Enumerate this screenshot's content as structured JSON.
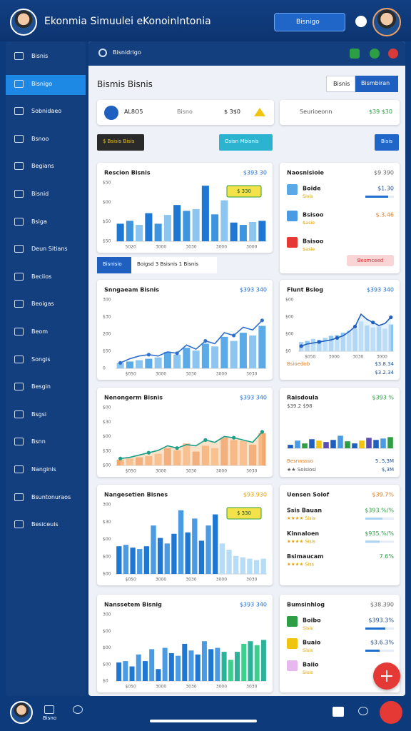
{
  "header": {
    "title": "Ekonmia  Simuulei eKonoinIntonia",
    "button": "Bisnigo"
  },
  "sidebar": {
    "items": [
      "Bisnis",
      "Bisnigo",
      "Sobnidaeo",
      "Bsnoo",
      "Begians",
      "Bisnid",
      "Bsiga",
      "Deun Sitians",
      "Beciios",
      "Beoigas",
      "Beom",
      "Songis",
      "Besgin",
      "Bsgsi",
      "Bsnn",
      "Nanginis",
      "Bsuntonuraos",
      "Besiceuis"
    ],
    "active": 1
  },
  "toolbar": {
    "title": "Bisnidrigo"
  },
  "page": {
    "title": "Bismis Bisnis",
    "tabs": [
      "Bisnis",
      "Bismbiran"
    ]
  },
  "stats": {
    "items": [
      "AL8O5",
      "Bisno",
      "$ 3$0"
    ],
    "side_label": "Seurioeonn",
    "side_value": "$39 $30"
  },
  "actions": [
    "$ Bsisis Bisis",
    "Osisn Mbisnis",
    "Bisis"
  ],
  "filter": {
    "tab": "Bisnisio",
    "select": "Boigsd  3 Bsisnis 1 Bisnis"
  },
  "charts": [
    {
      "type": "bar",
      "title": "Rescion Bisnis",
      "value": "$393 30",
      "value_color": "#1f6fd0",
      "ylim": [
        0,
        100
      ],
      "ylabels": [
        "$50",
        "$00",
        "$50",
        "$50"
      ],
      "xlabels": [
        "5020",
        "3000",
        "3030",
        "3000",
        "3000"
      ],
      "values": [
        30,
        35,
        28,
        48,
        30,
        45,
        62,
        52,
        55,
        95,
        46,
        70,
        32,
        28,
        33,
        35
      ],
      "colors": [
        "#1f77d4",
        "#3d95e0",
        "#8cc6f0"
      ],
      "badge": "$ 330"
    },
    {
      "type": "combo",
      "title": "Snngaeam Bisnis",
      "value": "$393 340",
      "value_color": "#1f6fd0",
      "ylim": [
        0,
        100
      ],
      "ylabels": [
        "300",
        "$30",
        "200",
        "$50",
        "0"
      ],
      "xlabels": [
        "$050",
        "3000",
        "3030",
        "3000",
        "3030"
      ],
      "values": [
        8,
        10,
        12,
        14,
        16,
        24,
        20,
        30,
        26,
        36,
        32,
        46,
        40,
        52,
        48,
        62
      ],
      "colors": [
        "#8cc6f0",
        "#5aaae8"
      ],
      "line": [
        8,
        14,
        18,
        20,
        18,
        24,
        22,
        34,
        28,
        40,
        36,
        52,
        48,
        60,
        56,
        70
      ],
      "line_color": "#2f6fcf"
    },
    {
      "type": "area",
      "title": "Nenongerm Bisnis",
      "value": "$393 340",
      "value_color": "#1f6fd0",
      "ylim": [
        0,
        100
      ],
      "ylabels": [
        "$00",
        "$30",
        "$00",
        "$30",
        "$00"
      ],
      "xlabels": [
        "$050",
        "3000",
        "3030",
        "3000",
        "3030"
      ],
      "values": [
        10,
        12,
        14,
        16,
        20,
        30,
        26,
        38,
        24,
        34,
        30,
        48,
        44,
        42,
        36,
        56
      ],
      "colors": [
        "#f5a66a",
        "#f7b985",
        "#e8925a"
      ],
      "line": [
        12,
        14,
        18,
        22,
        26,
        34,
        30,
        36,
        34,
        44,
        40,
        50,
        48,
        44,
        40,
        58
      ],
      "line_color": "#1b9e8a",
      "area_color": "#f8c89a"
    },
    {
      "type": "bar",
      "title": "Nangesetien Bisnes",
      "value": "$93.930",
      "value_color": "#e6a100",
      "ylim": [
        0,
        100
      ],
      "ylabels": [
        "300",
        "$30",
        "$00",
        "$00",
        "$00"
      ],
      "xlabels": [
        "$050",
        "3000",
        "3030",
        "3000",
        "3030"
      ],
      "values": [
        40,
        42,
        38,
        36,
        40,
        70,
        52,
        44,
        58,
        92,
        60,
        80,
        48,
        70,
        86,
        44,
        35,
        26,
        24,
        22,
        20,
        22
      ],
      "colors": [
        "#1f77d4",
        "#4a9be3",
        "#1f77d4",
        "#4a9be3",
        "#1f77d4",
        "#4a9be3",
        "#1f77d4",
        "#4a9be3",
        "#1f77d4",
        "#4a9be3",
        "#1f77d4",
        "#4a9be3",
        "#1f77d4",
        "#4a9be3",
        "#1f77d4",
        "#b7dcf5",
        "#b7dcf5",
        "#b7dcf5",
        "#b7dcf5",
        "#b7dcf5",
        "#b7dcf5",
        "#b7dcf5"
      ],
      "badge": "$ 330"
    },
    {
      "type": "bar",
      "title": "Nanssetem Bisnig",
      "value": "$393 340",
      "value_color": "#1f6fd0",
      "ylim": [
        0,
        100
      ],
      "ylabels": [
        "300",
        "$00",
        "$00",
        "$00",
        "$0"
      ],
      "xlabels": [
        "$050",
        "3000",
        "3030",
        "3000",
        "3030"
      ],
      "values": [
        28,
        30,
        22,
        40,
        30,
        48,
        18,
        50,
        42,
        38,
        56,
        46,
        40,
        60,
        48,
        50,
        44,
        32,
        44,
        56,
        60,
        54,
        62
      ],
      "colors": [
        "#1f77d4",
        "#4a9be3",
        "#1f77d4",
        "#4a9be3",
        "#1f77d4",
        "#4a9be3",
        "#1f77d4",
        "#4a9be3",
        "#1f77d4",
        "#4a9be3",
        "#1f77d4",
        "#4a9be3",
        "#1f77d4",
        "#4a9be3",
        "#1f77d4",
        "#4a9be3",
        "#2bb39a",
        "#3ccf8e",
        "#2bb39a",
        "#3ccf8e",
        "#2bb39a",
        "#3ccf8e",
        "#2bb39a"
      ]
    },
    {
      "type": "area",
      "title": "Flunt Bslog",
      "value": "$393 340",
      "value_color": "#1f6fd0",
      "ylim": [
        0,
        100
      ],
      "ylabels": [
        "$00",
        "$00",
        "$00",
        "$0"
      ],
      "xlabels": [
        "$050",
        "3000",
        "3030",
        "3000"
      ],
      "values": [
        18,
        20,
        24,
        22,
        26,
        30,
        32,
        36,
        40,
        44,
        58,
        50,
        46,
        48,
        44,
        52
      ],
      "colors": [
        "#a9d4f3",
        "#8cc6f0"
      ],
      "line": [
        10,
        14,
        16,
        18,
        20,
        22,
        26,
        30,
        38,
        48,
        72,
        62,
        56,
        50,
        54,
        66
      ],
      "line_color": "#1f5fbf",
      "area_color": "#cfe6fa",
      "footer": [
        {
          "left": "Bsioedob",
          "right": "$3.8.34"
        },
        {
          "right": "$3.2.34"
        }
      ]
    },
    {
      "type": "bar",
      "title": "Raisdoula",
      "subtitle": "$39.2 $98",
      "value": "$393 %",
      "value_color": "#2e9e44",
      "ylim": [
        0,
        100
      ],
      "ylabels": [],
      "xlabels": [],
      "values": [
        10,
        22,
        14,
        26,
        22,
        18,
        24,
        36,
        20,
        14,
        22,
        30,
        24,
        28,
        32
      ],
      "colors": [
        "#1f5fbf",
        "#4a9be3",
        "#2e9e44",
        "#1f5fbf",
        "#f1c40f",
        "#5b4db5"
      ],
      "footer": [
        {
          "left": "Besnnssso",
          "right": "5..5,3M"
        },
        {
          "left": "★★ Soisiosi",
          "right": "$,3M"
        }
      ]
    }
  ],
  "lists": [
    {
      "title": "Naosnlsioie",
      "value": "$9 390",
      "progress_lim": [
        0,
        100
      ],
      "rows": [
        {
          "name": "Boide",
          "sub": "Sisis",
          "value": "$1.30",
          "color": "#5aa9e6",
          "progress": 80,
          "bar_color": "#1f6fd0"
        },
        {
          "name": "Bsisoo",
          "sub": "$asie",
          "value": "$.3.46",
          "value_color": "#e67e22",
          "color": "#4a9be3"
        },
        {
          "name": "Bsisoo",
          "sub": "$asie",
          "color": "#e53935"
        }
      ],
      "button": "Besmceed"
    },
    {
      "title": "Uensen Solof",
      "value": "$39.7%",
      "value_color": "#e67e22",
      "progress_lim": [
        0,
        100
      ],
      "rows": [
        {
          "name": "Ssis Bauan",
          "sub": "★★★★ Sisis",
          "value": "$393.%/%",
          "value_color": "#2e9e44",
          "progress": 60,
          "bar_color": "#a9d4f3"
        },
        {
          "name": "Kinnaloen",
          "sub": "★★★★ Sisis",
          "value": "$935.%/%",
          "value_color": "#2e9e44",
          "progress": 50,
          "bar_color": "#a9d4f3"
        },
        {
          "name": "Bsimaucam",
          "sub": "★★★★ Siss",
          "value": "7.6%",
          "value_color": "#2e9e44"
        }
      ]
    },
    {
      "title": "Bumsinhlog",
      "value": "$38.390",
      "progress_lim": [
        0,
        100
      ],
      "rows": [
        {
          "name": "Boibo",
          "sub": "Sisis",
          "value": "$393.3%",
          "color": "#2e9e44",
          "progress": 70,
          "bar_color": "#1f6fd0"
        },
        {
          "name": "Buaio",
          "sub": "Sisis",
          "value": "$3.6.3%",
          "color": "#f1c40f",
          "progress": 50,
          "bar_color": "#1f6fd0"
        },
        {
          "name": "Baiio",
          "sub": "Sisis",
          "color": "#e9b7f0"
        }
      ]
    }
  ],
  "bottom": {
    "label": "Bisno"
  }
}
